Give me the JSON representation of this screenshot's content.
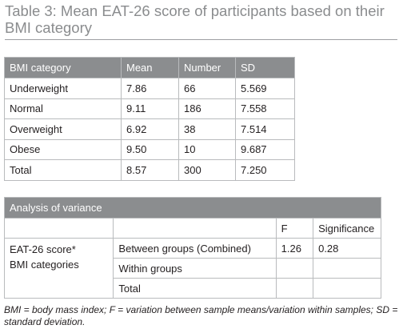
{
  "title": "Table 3: Mean EAT-26 score of participants based on their BMI category",
  "table1": {
    "headers": [
      "BMI category",
      "Mean",
      "Number",
      "SD"
    ],
    "rows": [
      [
        "Underweight",
        "7.86",
        "66",
        "5.569"
      ],
      [
        "Normal",
        "9.11",
        "186",
        "7.558"
      ],
      [
        "Overweight",
        "6.92",
        "38",
        "7.514"
      ],
      [
        "Obese",
        "9.50",
        "10",
        "9.687"
      ],
      [
        "Total",
        "8.57",
        "300",
        "7.250"
      ]
    ]
  },
  "table2": {
    "banner": "Analysis of variance",
    "col_f": "F",
    "col_sig": "Significance",
    "row_label_line1": "EAT-26 score*",
    "row_label_line2": "BMI categories",
    "rows": [
      {
        "label": "Between groups (Combined)",
        "f": "1.26",
        "sig": "0.28"
      },
      {
        "label": "Within groups",
        "f": "",
        "sig": ""
      },
      {
        "label": "Total",
        "f": "",
        "sig": ""
      }
    ]
  },
  "footnote": "BMI = body mass index; F = variation between sample means/variation within samples; SD = standard deviation."
}
